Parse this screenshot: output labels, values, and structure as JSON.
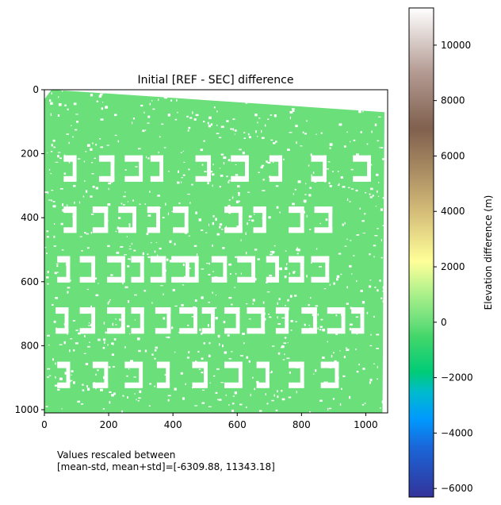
{
  "chart_data": {
    "type": "heatmap",
    "title": "Initial [REF - SEC] difference",
    "xlabel": "",
    "ylabel": "",
    "xlim": [
      0,
      1068
    ],
    "ylim": [
      1010,
      0
    ],
    "x_ticks": [
      0,
      200,
      400,
      600,
      800,
      1000
    ],
    "y_ticks": [
      0,
      200,
      400,
      600,
      800,
      1000
    ],
    "fill_color": "#6bdf7a",
    "mask_color": "#ffffff",
    "colorbar": {
      "label": "Elevation difference (m)",
      "vmin": -6309.88,
      "vmax": 11343.18,
      "ticks": [
        -6000,
        -4000,
        -2000,
        0,
        2000,
        4000,
        6000,
        8000,
        10000
      ],
      "tick_labels": [
        "−6000",
        "−4000",
        "−2000",
        "0",
        "2000",
        "4000",
        "6000",
        "8000",
        "10000"
      ],
      "colormap_stops": [
        {
          "value": -6309.88,
          "color": "#333399"
        },
        {
          "value": -4500,
          "color": "#1a66d9"
        },
        {
          "value": -3500,
          "color": "#0099ff"
        },
        {
          "value": -2500,
          "color": "#00bbcc"
        },
        {
          "value": -1800,
          "color": "#00cc77"
        },
        {
          "value": -500,
          "color": "#44d66a"
        },
        {
          "value": 0,
          "color": "#6bdf7a"
        },
        {
          "value": 1000,
          "color": "#aaf08a"
        },
        {
          "value": 2200,
          "color": "#ffff99"
        },
        {
          "value": 4000,
          "color": "#d4bc78"
        },
        {
          "value": 5500,
          "color": "#a98b62"
        },
        {
          "value": 7000,
          "color": "#80604e"
        },
        {
          "value": 9000,
          "color": "#b39a92"
        },
        {
          "value": 11343.18,
          "color": "#ffffff"
        }
      ]
    },
    "annotation": "Values rescaled between\n[mean-std, mean+std]=[-6309.88, 11343.18]"
  }
}
